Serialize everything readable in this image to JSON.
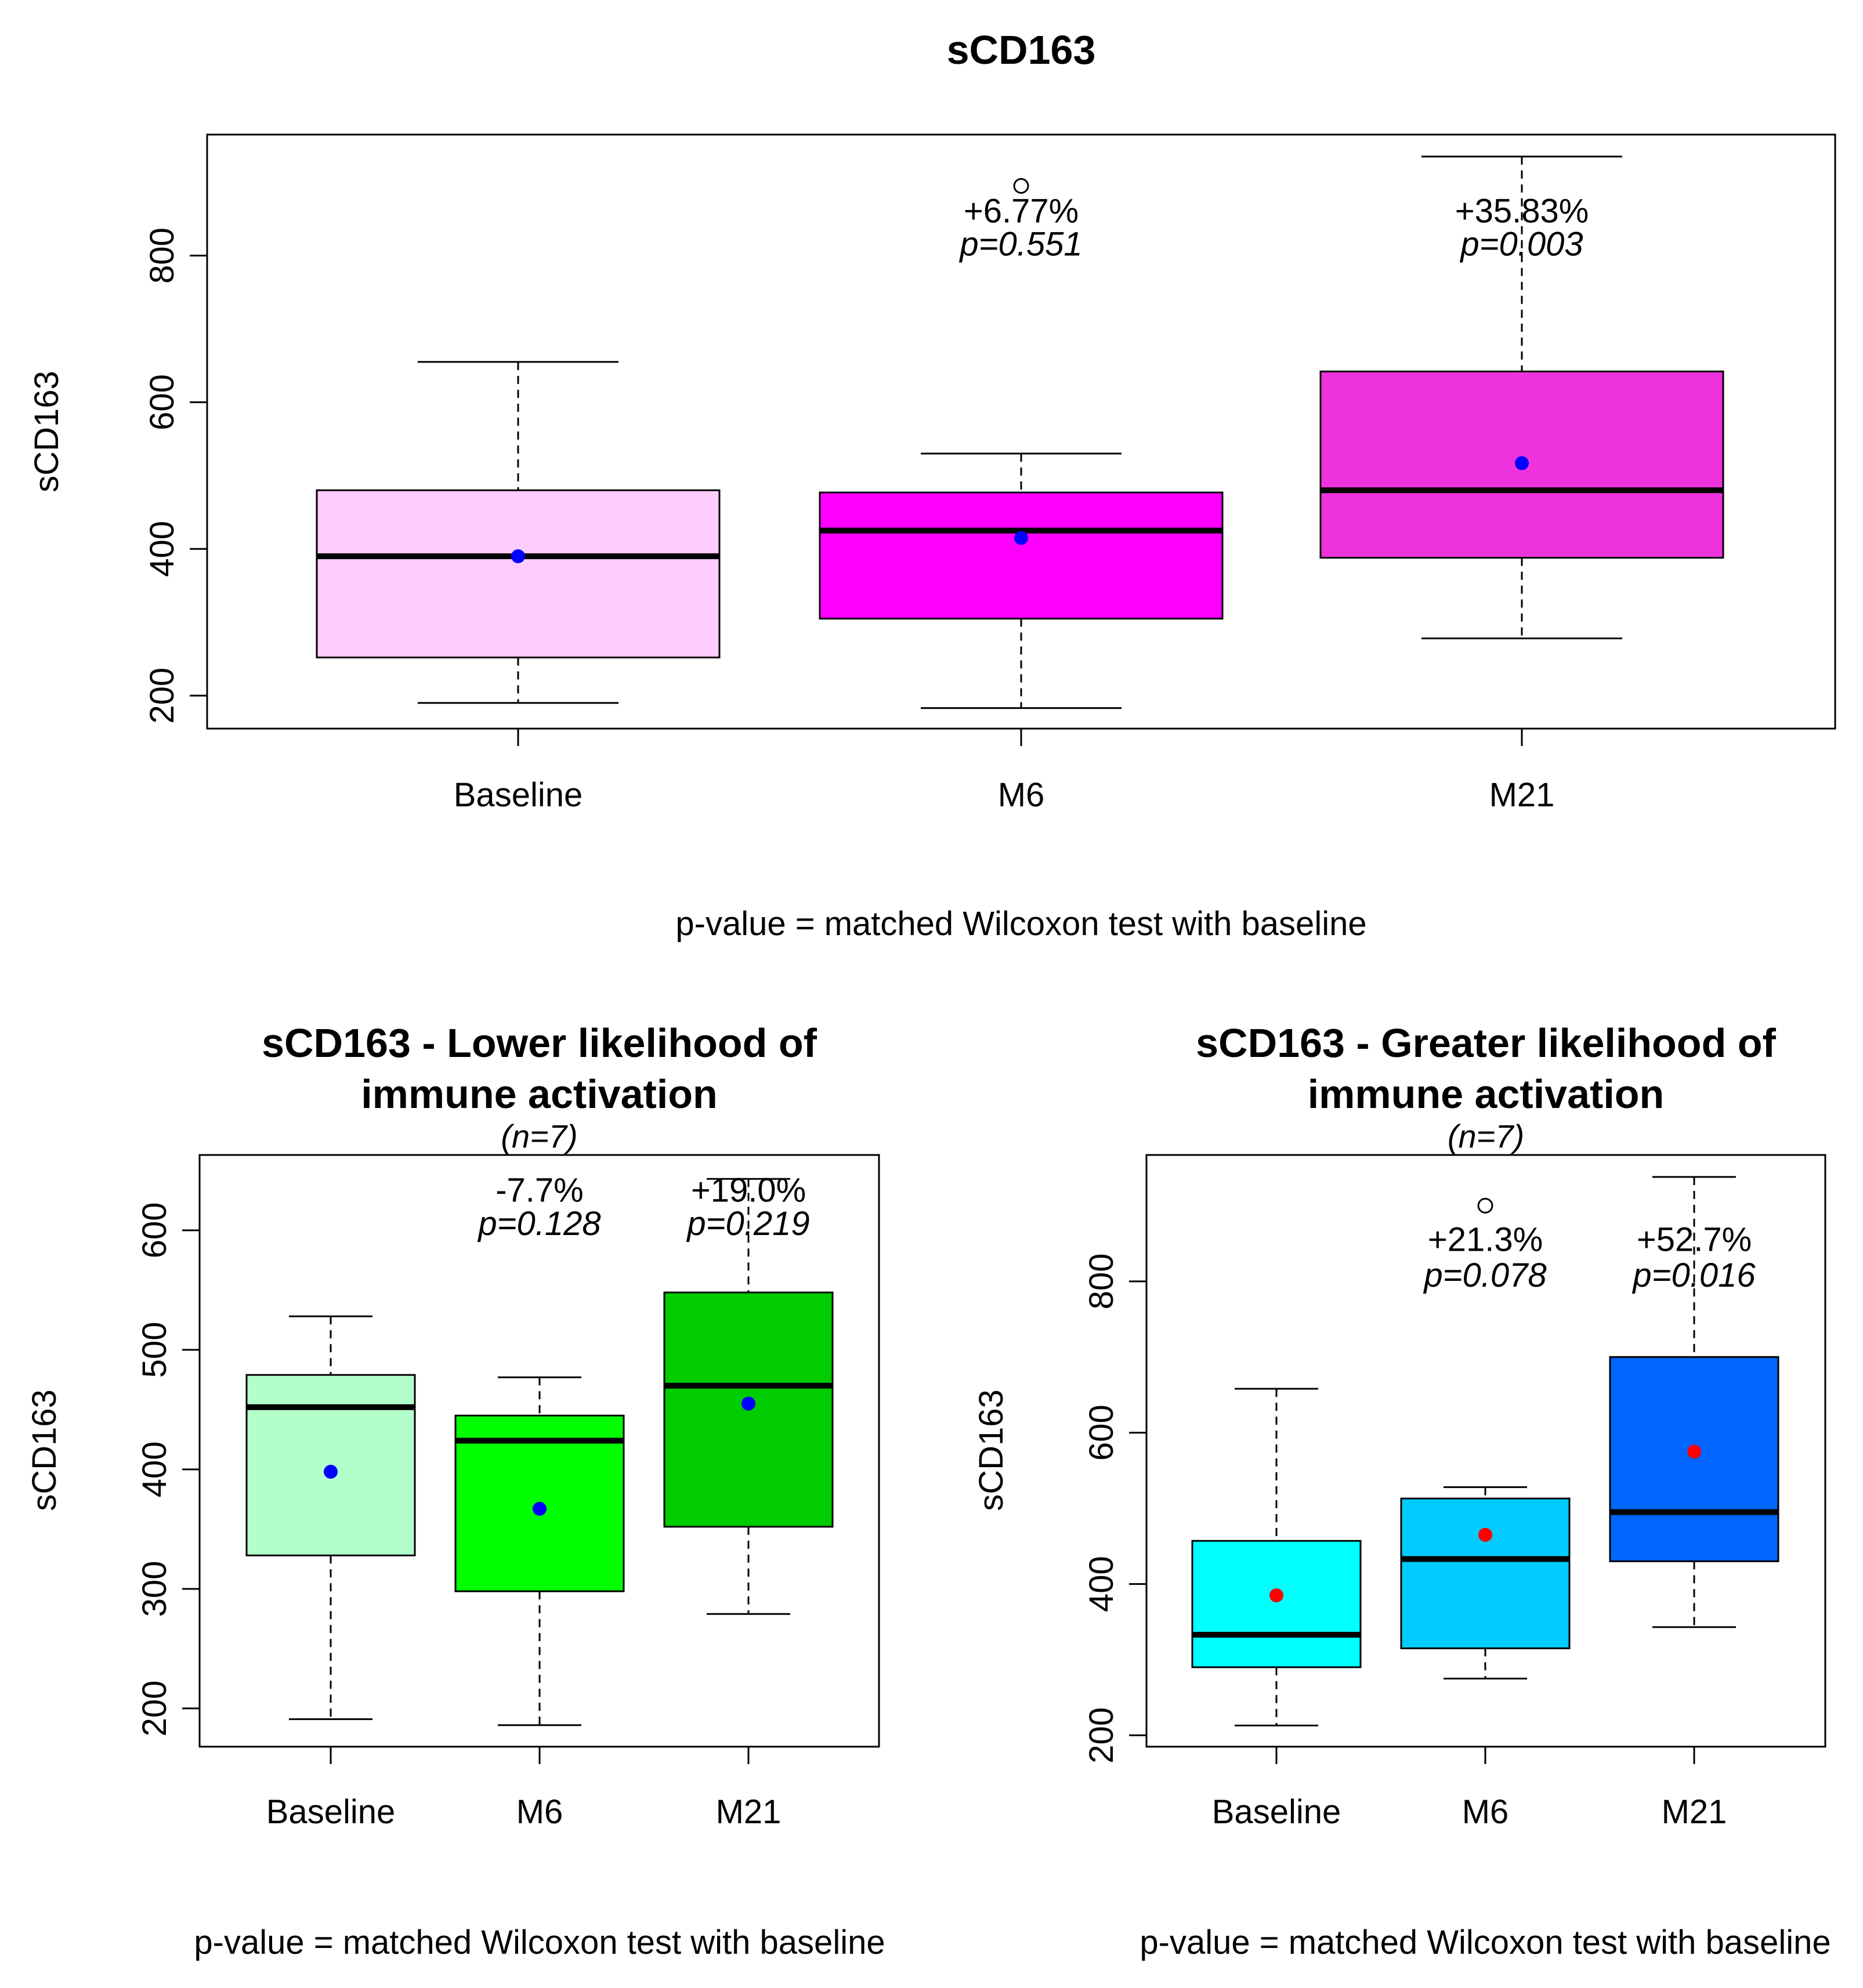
{
  "chart_data": [
    {
      "type": "box",
      "title": "sCD163",
      "subtitle": "",
      "ylabel": "sCD163",
      "xlabel": "",
      "footnote": "p-value = matched Wilcoxon test with baseline",
      "ylim": [
        155,
        965
      ],
      "yticks": [
        200,
        400,
        600,
        800
      ],
      "categories": [
        "Baseline",
        "M6",
        "M21"
      ],
      "boxes": [
        {
          "category": "Baseline",
          "color": "#FFCCFF",
          "whisker_low": 190,
          "q1": 252,
          "median": 390,
          "q3": 480,
          "whisker_high": 655,
          "mean": 390,
          "outliers": []
        },
        {
          "category": "M6",
          "color": "#FF00FF",
          "whisker_low": 183,
          "q1": 305,
          "median": 425,
          "q3": 477,
          "whisker_high": 530,
          "mean": 415,
          "outliers": [
            895
          ]
        },
        {
          "category": "M21",
          "color": "#EE33DD",
          "whisker_low": 278,
          "q1": 388,
          "median": 480,
          "q3": 642,
          "whisker_high": 935,
          "mean": 517,
          "outliers": []
        }
      ],
      "mean_color": "#0000FF",
      "annotations": [
        {
          "category": "M6",
          "change": "+6.77%",
          "p": "p=0.551",
          "y_change": 845,
          "y_p": 800
        },
        {
          "category": "M21",
          "change": "+35.83%",
          "p": "p=0.003",
          "y_change": 845,
          "y_p": 800
        }
      ]
    },
    {
      "type": "box",
      "title": "sCD163 - Lower likelihood of",
      "title_line2": "immune activation",
      "subtitle": "(n=7)",
      "ylabel": "sCD163",
      "xlabel": "",
      "footnote": "p-value = matched Wilcoxon test with baseline",
      "ylim": [
        168,
        663
      ],
      "yticks": [
        200,
        300,
        400,
        500,
        600
      ],
      "categories": [
        "Baseline",
        "M6",
        "M21"
      ],
      "boxes": [
        {
          "category": "Baseline",
          "color": "#B3FFCC",
          "whisker_low": 191,
          "q1": 328,
          "median": 452,
          "q3": 479,
          "whisker_high": 528,
          "mean": 398,
          "outliers": []
        },
        {
          "category": "M6",
          "color": "#00FF00",
          "whisker_low": 186,
          "q1": 298,
          "median": 424,
          "q3": 445,
          "whisker_high": 477,
          "mean": 367,
          "outliers": []
        },
        {
          "category": "M21",
          "color": "#00CC00",
          "whisker_low": 279,
          "q1": 352,
          "median": 470,
          "q3": 548,
          "whisker_high": 643,
          "mean": 455,
          "outliers": []
        }
      ],
      "mean_color": "#0000FF",
      "annotations": [
        {
          "category": "M6",
          "change": "-7.7%",
          "p": "p=0.128",
          "y_change": 624,
          "y_p": 596
        },
        {
          "category": "M21",
          "change": "+19.0%",
          "p": "p=0.219",
          "y_change": 624,
          "y_p": 596
        }
      ]
    },
    {
      "type": "box",
      "title": "sCD163 - Greater likelihood of",
      "title_line2": "immune activation",
      "subtitle": "(n=7)",
      "ylabel": "sCD163",
      "xlabel": "",
      "footnote": "p-value = matched Wilcoxon test with baseline",
      "ylim": [
        185,
        967
      ],
      "yticks": [
        200,
        400,
        600,
        800
      ],
      "categories": [
        "Baseline",
        "M6",
        "M21"
      ],
      "boxes": [
        {
          "category": "Baseline",
          "color": "#00FFFF",
          "whisker_low": 213,
          "q1": 290,
          "median": 333,
          "q3": 457,
          "whisker_high": 658,
          "mean": 385,
          "outliers": []
        },
        {
          "category": "M6",
          "color": "#00CCFF",
          "whisker_low": 275,
          "q1": 315,
          "median": 433,
          "q3": 513,
          "whisker_high": 528,
          "mean": 465,
          "outliers": [
            900
          ]
        },
        {
          "category": "M21",
          "color": "#0066FF",
          "whisker_low": 343,
          "q1": 430,
          "median": 495,
          "q3": 700,
          "whisker_high": 938,
          "mean": 575,
          "outliers": []
        }
      ],
      "mean_color": "#FF0000",
      "annotations": [
        {
          "category": "M6",
          "change": "+21.3%",
          "p": "p=0.078",
          "y_change": 840,
          "y_p": 793
        },
        {
          "category": "M21",
          "change": "+52.7%",
          "p": "p=0.016",
          "y_change": 840,
          "y_p": 793
        }
      ]
    }
  ]
}
